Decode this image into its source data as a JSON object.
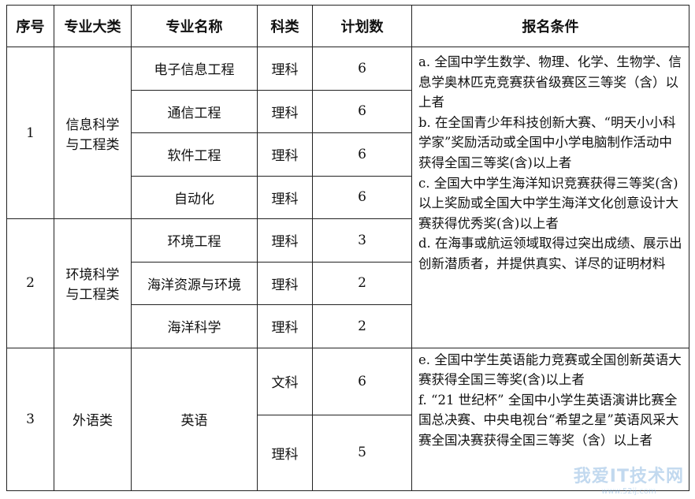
{
  "headers": [
    "序号",
    "专业大类",
    "专业名称",
    "科类",
    "计划数",
    "报名条件"
  ],
  "groups": [
    {
      "index": "1",
      "category": "信息科学与工程类",
      "majors": [
        {
          "name": "电子信息工程",
          "subject": "理科",
          "plan": "6"
        },
        {
          "name": "通信工程",
          "subject": "理科",
          "plan": "6"
        },
        {
          "name": "软件工程",
          "subject": "理科",
          "plan": "6"
        },
        {
          "name": "自动化",
          "subject": "理科",
          "plan": "6"
        }
      ]
    },
    {
      "index": "2",
      "category": "环境科学与工程类",
      "majors": [
        {
          "name": "环境工程",
          "subject": "理科",
          "plan": "3"
        },
        {
          "name": "海洋资源与环境",
          "subject": "理科",
          "plan": "2"
        },
        {
          "name": "海洋科学",
          "subject": "理科",
          "plan": "2"
        }
      ]
    },
    {
      "index": "3",
      "category": "外语类",
      "majors": [
        {
          "name": "英语",
          "subject": "文科",
          "plan": "6"
        },
        {
          "name": "英语",
          "subject": "理科",
          "plan": "5"
        }
      ]
    }
  ],
  "requirements_science": [
    "a. 全国中学生数学、物理、化学、生物学、信息学奥林匹克竞赛获省级赛区三等奖（含）以上者",
    "b. 在全国青少年科技创新大赛、“明天小小科学家”奖励活动或全国中小学电脑制作活动中获得全国三等奖(含)以上者",
    "c. 全国大中学生海洋知识竞赛获得三等奖(含)以上奖励或全国大中学生海洋文化创意设计大赛获得优秀奖(含)以上者",
    "d. 在海事或航运领域取得过突出成绩、展示出创新潜质者，并提供真实、详尽的证明材料"
  ],
  "requirements_english": [
    "e. 全国中学生英语能力竞赛或全国创新英语大赛获得全国三等奖(含)以上者",
    "f. “21 世纪杯” 全国中小学生英语演讲比赛全国总决赛、中央电视台“希望之星”英语风采大赛全国决赛获得全国三等奖（含）以上者"
  ],
  "watermark": {
    "title": "我爱IT技术网",
    "url": "www.52ij.com"
  }
}
